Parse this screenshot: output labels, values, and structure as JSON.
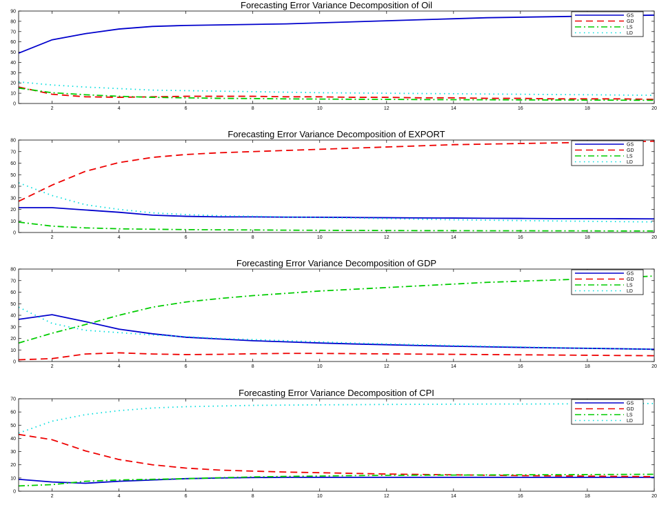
{
  "legend_labels": [
    "GS",
    "GD",
    "LS",
    "LD"
  ],
  "colors": {
    "GS": "#0000cc",
    "GD": "#ee0000",
    "LS": "#00cc00",
    "LD": "#00dddd"
  },
  "chart_data": [
    {
      "type": "line",
      "title": "Forecasting Error Variance Decomposition of  Oil",
      "xlim": [
        1,
        20
      ],
      "ylim": [
        0,
        90
      ],
      "xticks": [
        2,
        4,
        6,
        8,
        10,
        12,
        14,
        16,
        18,
        20
      ],
      "xtick_labels": [
        "2",
        "4",
        "6",
        "8",
        "10",
        "12",
        "14",
        "16",
        "18",
        "20"
      ],
      "yticks": [
        0,
        10,
        20,
        30,
        40,
        50,
        60,
        70,
        80,
        90
      ],
      "ytick_labels": [
        "0",
        "10",
        "20",
        "30",
        "40",
        "50",
        "60",
        "70",
        "80",
        "90"
      ],
      "legend_position": "top-right",
      "x": [
        1,
        2,
        3,
        4,
        5,
        6,
        7,
        8,
        9,
        10,
        11,
        12,
        13,
        14,
        15,
        16,
        17,
        18,
        19,
        20
      ],
      "series": [
        {
          "name": "GS",
          "style": "solid",
          "values": [
            49,
            62,
            68,
            72.5,
            75,
            76,
            76.5,
            77,
            77.5,
            78.5,
            79.5,
            80.5,
            81.5,
            82.5,
            83.5,
            84,
            84.5,
            85,
            85.5,
            86
          ]
        },
        {
          "name": "GD",
          "style": "dashed",
          "values": [
            16,
            9,
            6.5,
            6,
            6.5,
            7,
            7,
            7,
            6.5,
            6.5,
            6,
            6,
            5.5,
            5.5,
            5,
            5,
            4.5,
            4.5,
            4.5,
            4
          ]
        },
        {
          "name": "LS",
          "style": "dashdot",
          "values": [
            15,
            10.5,
            8.5,
            7,
            6,
            5.5,
            5,
            4.8,
            4.5,
            4.3,
            4.1,
            4,
            3.8,
            3.7,
            3.6,
            3.5,
            3.4,
            3.3,
            3.2,
            3.1
          ]
        },
        {
          "name": "LD",
          "style": "dotted",
          "values": [
            21,
            18,
            16,
            14.5,
            13,
            12.5,
            12,
            11.5,
            11,
            10.5,
            10.2,
            10,
            9.7,
            9.5,
            9.2,
            9,
            8.7,
            8.5,
            8.2,
            8
          ]
        }
      ]
    },
    {
      "type": "line",
      "title": "Forecasting Error Variance Decomposition of  EXPORT",
      "xlim": [
        1,
        20
      ],
      "ylim": [
        0,
        80
      ],
      "xticks": [
        2,
        4,
        6,
        8,
        10,
        12,
        14,
        16,
        18,
        20
      ],
      "xtick_labels": [
        "2",
        "4",
        "6",
        "8",
        "10",
        "12",
        "14",
        "16",
        "18",
        "20"
      ],
      "yticks": [
        0,
        10,
        20,
        30,
        40,
        50,
        60,
        70,
        80
      ],
      "ytick_labels": [
        "0",
        "10",
        "20",
        "30",
        "40",
        "50",
        "60",
        "70",
        "80"
      ],
      "legend_position": "top-right",
      "x": [
        1,
        2,
        3,
        4,
        5,
        6,
        7,
        8,
        9,
        10,
        11,
        12,
        13,
        14,
        15,
        16,
        17,
        18,
        19,
        20
      ],
      "series": [
        {
          "name": "GS",
          "style": "solid",
          "values": [
            21.5,
            21.5,
            19.5,
            17.5,
            15,
            14,
            13.5,
            13.5,
            13.3,
            13.2,
            13,
            12.8,
            12.6,
            12.5,
            12.3,
            12.2,
            12,
            12,
            11.9,
            11.8
          ]
        },
        {
          "name": "GD",
          "style": "dashed",
          "values": [
            27,
            41,
            53,
            60.5,
            65,
            67.5,
            69,
            70,
            71,
            72,
            73,
            74,
            75,
            76,
            76.5,
            77,
            77.5,
            78,
            78.5,
            79
          ]
        },
        {
          "name": "LS",
          "style": "dashdot",
          "values": [
            9,
            5.5,
            4,
            3.2,
            2.8,
            2.5,
            2.3,
            2.2,
            2,
            1.9,
            1.8,
            1.7,
            1.6,
            1.6,
            1.5,
            1.5,
            1.4,
            1.4,
            1.3,
            1.3
          ]
        },
        {
          "name": "LD",
          "style": "dotted",
          "values": [
            43,
            32,
            24,
            20,
            17,
            15.5,
            14.5,
            14,
            13.5,
            13,
            12.5,
            12,
            11.5,
            11,
            10.7,
            10.3,
            10,
            9.7,
            9.4,
            9.1
          ]
        }
      ]
    },
    {
      "type": "line",
      "title": "Forecasting Error Variance Decomposition of  GDP",
      "xlim": [
        1,
        20
      ],
      "ylim": [
        0,
        80
      ],
      "xticks": [
        2,
        4,
        6,
        8,
        10,
        12,
        14,
        16,
        18,
        20
      ],
      "xtick_labels": [
        "2",
        "4",
        "6",
        "8",
        "10",
        "12",
        "14",
        "16",
        "18",
        "20"
      ],
      "yticks": [
        0,
        10,
        20,
        30,
        40,
        50,
        60,
        70,
        80
      ],
      "ytick_labels": [
        "0",
        "10",
        "20",
        "30",
        "40",
        "50",
        "60",
        "70",
        "80"
      ],
      "legend_position": "top-right",
      "x": [
        1,
        2,
        3,
        4,
        5,
        6,
        7,
        8,
        9,
        10,
        11,
        12,
        13,
        14,
        15,
        16,
        17,
        18,
        19,
        20
      ],
      "series": [
        {
          "name": "GS",
          "style": "solid",
          "values": [
            36.5,
            40.5,
            34.5,
            28,
            24,
            21,
            19.5,
            18,
            17,
            16,
            15.2,
            14.5,
            13.8,
            13.2,
            12.7,
            12.2,
            11.8,
            11.4,
            11,
            10.6
          ]
        },
        {
          "name": "GD",
          "style": "dashed",
          "values": [
            1.5,
            2.5,
            6.5,
            7.5,
            6.5,
            6,
            6.2,
            6.7,
            7,
            7,
            6.8,
            6.6,
            6.4,
            6.2,
            6,
            5.8,
            5.6,
            5.4,
            5.2,
            5
          ]
        },
        {
          "name": "LS",
          "style": "dashdot",
          "values": [
            16,
            24.5,
            32,
            40,
            47,
            51.5,
            54.5,
            57,
            59,
            61,
            62.5,
            64,
            65.5,
            67,
            68.5,
            69.5,
            70.5,
            71.5,
            72.5,
            74
          ]
        },
        {
          "name": "LD",
          "style": "dotted",
          "values": [
            47,
            33,
            27,
            25,
            23,
            21.5,
            20,
            19,
            18,
            17,
            16,
            15.2,
            14.5,
            13.8,
            13.2,
            12.6,
            12,
            11.5,
            11,
            10.5
          ]
        }
      ]
    },
    {
      "type": "line",
      "title": "Forecasting Error Variance Decomposition of  CPI",
      "xlim": [
        1,
        20
      ],
      "ylim": [
        0,
        70
      ],
      "xticks": [
        2,
        4,
        6,
        8,
        10,
        12,
        14,
        16,
        18,
        20
      ],
      "xtick_labels": [
        "2",
        "4",
        "6",
        "8",
        "10",
        "12",
        "14",
        "16",
        "18",
        "20"
      ],
      "yticks": [
        0,
        10,
        20,
        30,
        40,
        50,
        60,
        70
      ],
      "ytick_labels": [
        "0",
        "10",
        "20",
        "30",
        "40",
        "50",
        "60",
        "70"
      ],
      "legend_position": "top-right",
      "x": [
        1,
        2,
        3,
        4,
        5,
        6,
        7,
        8,
        9,
        10,
        11,
        12,
        13,
        14,
        15,
        16,
        17,
        18,
        19,
        20
      ],
      "series": [
        {
          "name": "GS",
          "style": "solid",
          "values": [
            9,
            7,
            6,
            7.5,
            8.5,
            9.5,
            10,
            10.3,
            10.5,
            10.5,
            10.5,
            10.5,
            10.5,
            10.5,
            10.5,
            10.5,
            10.5,
            10.5,
            10.5,
            10.5
          ]
        },
        {
          "name": "GD",
          "style": "dashed",
          "values": [
            43,
            39,
            30.5,
            24,
            20,
            17.5,
            16,
            15.2,
            14.5,
            14,
            13.5,
            13,
            12.7,
            12.4,
            12.1,
            11.8,
            11.6,
            11.4,
            11.2,
            11
          ]
        },
        {
          "name": "LS",
          "style": "dashdot",
          "values": [
            4,
            5,
            7.5,
            8.5,
            9,
            9.5,
            10.2,
            10.8,
            11.2,
            11.5,
            11.8,
            12,
            12.1,
            12.2,
            12.3,
            12.4,
            12.5,
            12.6,
            12.7,
            12.8
          ]
        },
        {
          "name": "LD",
          "style": "dotted",
          "values": [
            44,
            53,
            58,
            61,
            63,
            64,
            64.5,
            65,
            65.2,
            65.4,
            65.5,
            65.7,
            65.8,
            65.9,
            66,
            66,
            66.1,
            66.2,
            66.3,
            66.4
          ]
        }
      ]
    }
  ]
}
